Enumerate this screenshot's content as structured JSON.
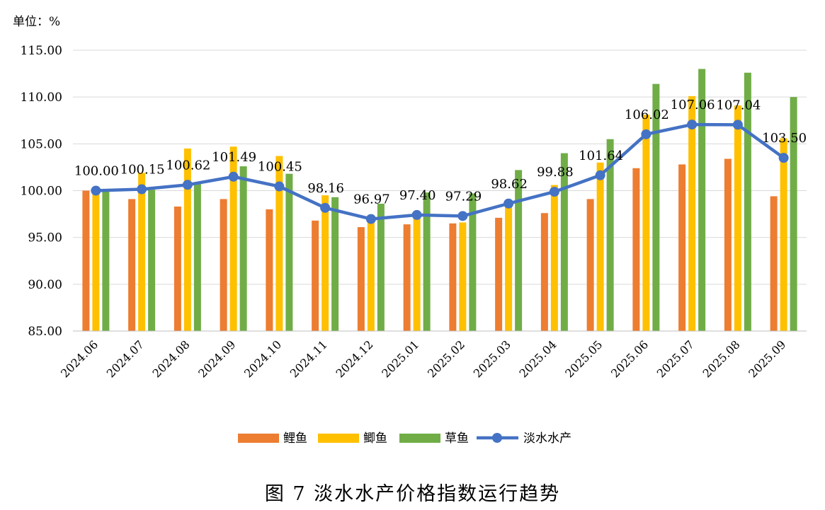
{
  "unit_label": "单位：%",
  "caption": "图 7  淡水水产价格指数运行趋势",
  "colors": {
    "carp": "#ED7D31",
    "crucian": "#FFC000",
    "grass": "#70AD47",
    "freshwater": "#4472C4",
    "grid": "#D9D9D9",
    "axis": "#BFBFBF"
  },
  "chart_data": {
    "type": "bar",
    "categories": [
      "2024.06",
      "2024.07",
      "2024.08",
      "2024.09",
      "2024.10",
      "2024.11",
      "2024.12",
      "2025.01",
      "2025.02",
      "2025.03",
      "2025.04",
      "2025.05",
      "2025.06",
      "2025.07",
      "2025.08",
      "2025.09"
    ],
    "ylim": [
      85,
      115
    ],
    "yticks": [
      "85.00",
      "90.00",
      "95.00",
      "100.00",
      "105.00",
      "110.00",
      "115.00"
    ],
    "grid": true,
    "legend_position": "bottom",
    "series": [
      {
        "name": "鲤鱼",
        "type": "bar",
        "values": [
          100.0,
          99.1,
          98.3,
          99.1,
          98.0,
          96.8,
          96.1,
          96.4,
          96.5,
          97.1,
          97.6,
          99.1,
          102.4,
          102.8,
          103.4,
          99.4
        ]
      },
      {
        "name": "鲫鱼",
        "type": "bar",
        "values": [
          100.0,
          101.9,
          104.5,
          104.7,
          103.7,
          99.5,
          97.3,
          97.6,
          96.6,
          98.7,
          100.6,
          103.0,
          108.1,
          110.1,
          109.1,
          105.6
        ]
      },
      {
        "name": "草鱼",
        "type": "bar",
        "values": [
          100.0,
          100.1,
          100.8,
          102.6,
          101.8,
          99.3,
          98.6,
          99.8,
          99.7,
          102.2,
          104.0,
          105.5,
          111.4,
          113.0,
          112.6,
          110.0
        ]
      },
      {
        "name": "淡水水产",
        "type": "line",
        "values": [
          100.0,
          100.15,
          100.62,
          101.49,
          100.45,
          98.16,
          96.97,
          97.4,
          97.29,
          98.62,
          99.88,
          101.64,
          106.02,
          107.06,
          107.04,
          103.5
        ],
        "labels": [
          "100.00",
          "100.15",
          "100.62",
          "101.49",
          "100.45",
          "98.16",
          "96.97",
          "97.40",
          "97.29",
          "98.62",
          "99.88",
          "101.64",
          "106.02",
          "107.06",
          "107.04",
          "103.50"
        ]
      }
    ]
  }
}
